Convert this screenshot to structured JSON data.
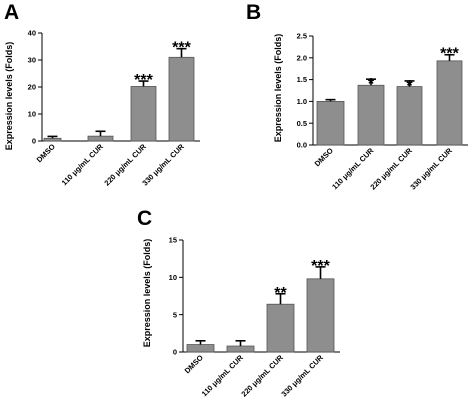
{
  "colors": {
    "bar_fill": "#8e8e8e",
    "bar_stroke": "#555555",
    "axis": "#000000"
  },
  "chart_data": [
    {
      "panel": "A",
      "type": "bar",
      "ylabel": "Expression levels (Folds)",
      "ylim": [
        0,
        40
      ],
      "yticks": [
        0,
        10,
        20,
        30,
        40
      ],
      "ytick_labels": [
        "0",
        "10",
        "20",
        "30",
        "40"
      ],
      "categories": [
        "DMSO",
        "110 μg/mL CUR",
        "220 μg/mL CUR",
        "330 μg/mL CUR"
      ],
      "values": [
        1.0,
        1.8,
        20.2,
        31.0
      ],
      "errors": [
        0.7,
        1.8,
        2.0,
        3.2
      ],
      "significance": [
        "",
        "",
        "***",
        "***"
      ]
    },
    {
      "panel": "B",
      "type": "bar",
      "ylabel": "Expression levels (Folds)",
      "ylim": [
        0,
        2.5
      ],
      "yticks": [
        0,
        0.5,
        1,
        1.5,
        2,
        2.5
      ],
      "ytick_labels": [
        "0.0",
        "0.5",
        "1.0",
        "1.5",
        "2.0",
        "2.5"
      ],
      "categories": [
        "DMSO",
        "110 μg/mL CUR",
        "220 μg/mL CUR",
        "330 μg/mL CUR"
      ],
      "values": [
        1.0,
        1.37,
        1.34,
        1.93
      ],
      "errors": [
        0.04,
        0.14,
        0.13,
        0.14
      ],
      "significance": [
        "",
        "*",
        "*",
        "***"
      ]
    },
    {
      "panel": "C",
      "type": "bar",
      "ylabel": "Expression levels (Folds)",
      "ylim": [
        0,
        15
      ],
      "yticks": [
        0,
        5,
        10,
        15
      ],
      "ytick_labels": [
        "0",
        "5",
        "10",
        "15"
      ],
      "categories": [
        "DMSO",
        "110 μg/mL CUR",
        "220 μg/mL CUR",
        "330 μg/mL CUR"
      ],
      "values": [
        1.0,
        0.8,
        6.4,
        9.8
      ],
      "errors": [
        0.5,
        0.7,
        1.4,
        1.6
      ],
      "significance": [
        "",
        "",
        "**",
        "***"
      ]
    }
  ]
}
